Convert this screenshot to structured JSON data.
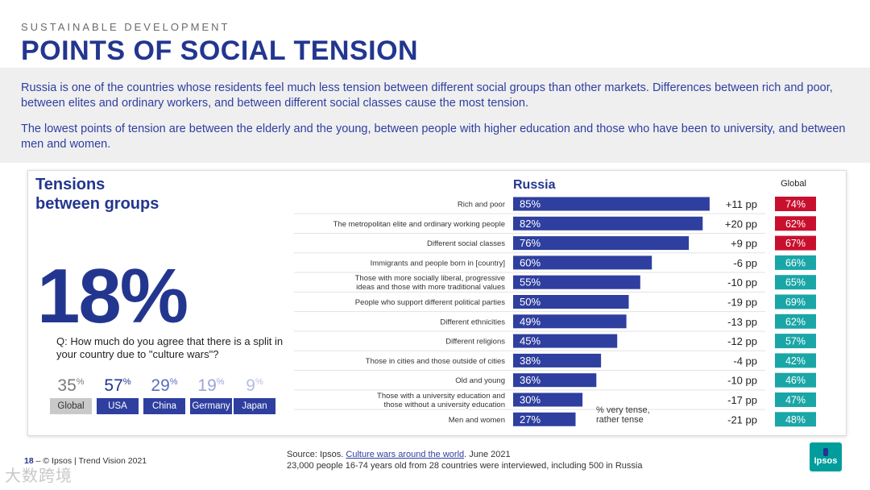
{
  "header": {
    "eyebrow": "SUSTAINABLE DEVELOPMENT",
    "title": "POINTS OF SOCIAL TENSION"
  },
  "intro": {
    "paragraph1": "Russia is one of the countries whose residents feel much less tension between different social groups than other markets. Differences between rich and poor, between elites and ordinary workers, and between different social classes cause the most tension.",
    "paragraph2": "The lowest points of tension are between the elderly and the young, between people with higher education and those who have been to university, and between men and women."
  },
  "panel": {
    "title_line1": "Tensions",
    "title_line2": "between groups",
    "big_stat": "18%",
    "question": "Q: How much do you agree that there is a split in your country due to \"culture wars\"?",
    "countries": [
      {
        "name": "Global",
        "value": "35",
        "unit": "%",
        "value_color": "#7a7a7a",
        "label_bg": "#c9c9c9",
        "label_color": "#333333"
      },
      {
        "name": "USA",
        "value": "57",
        "unit": "%",
        "value_color": "#23368f",
        "label_bg": "#2f3f9f",
        "label_color": "#ffffff"
      },
      {
        "name": "China",
        "value": "29",
        "unit": "%",
        "value_color": "#5b6cc0",
        "label_bg": "#2f3f9f",
        "label_color": "#ffffff"
      },
      {
        "name": "Germany",
        "value": "19",
        "unit": "%",
        "value_color": "#9aa4d8",
        "label_bg": "#2f3f9f",
        "label_color": "#ffffff"
      },
      {
        "name": "Japan",
        "value": "9",
        "unit": "%",
        "value_color": "#b6bde3",
        "label_bg": "#2f3f9f",
        "label_color": "#ffffff"
      }
    ]
  },
  "chart_data": {
    "type": "bar",
    "title": "Russia",
    "global_header": "Global",
    "axis_note_line1": "% very tense,",
    "axis_note_line2": "rather tense",
    "categories": [
      "Rich and poor",
      "The metropolitan elite and ordinary working people",
      "Different social classes",
      "Immigrants and people born in [country]",
      "Those with more socially liberal, progressive ideas and those with more traditional values",
      "People who support different political parties",
      "Different ethnicities",
      "Different religions",
      "Those in cities and those outside of cities",
      "Old and young",
      "Those with a university education and those without a university education",
      "Men and women"
    ],
    "label_lines": [
      [
        "Rich and poor"
      ],
      [
        "The metropolitan elite and ordinary working people"
      ],
      [
        "Different social classes"
      ],
      [
        "Immigrants and people born in [country]"
      ],
      [
        "Those with more socially liberal, progressive",
        "ideas and those with more traditional values"
      ],
      [
        "People who support different political parties"
      ],
      [
        "Different ethnicities"
      ],
      [
        "Different religions"
      ],
      [
        "Those in cities and those outside of cities"
      ],
      [
        "Old and young"
      ],
      [
        "Those with a university education and",
        "those without a university education"
      ],
      [
        "Men and women"
      ]
    ],
    "series": [
      {
        "name": "Russia",
        "values": [
          85,
          82,
          76,
          60,
          55,
          50,
          49,
          45,
          38,
          36,
          30,
          27
        ]
      }
    ],
    "value_labels": [
      "85%",
      "82%",
      "76%",
      "60%",
      "55%",
      "50%",
      "49%",
      "45%",
      "38%",
      "36%",
      "30%",
      "27%"
    ],
    "diff_labels": [
      "+11 pp",
      "+20 pp",
      "+9 pp",
      "-6 pp",
      "-10 pp",
      "-19 pp",
      "-13 pp",
      "-12 pp",
      "-4 pp",
      "-10 pp",
      "-17 pp",
      "-21 pp"
    ],
    "global_values": [
      74,
      62,
      67,
      66,
      65,
      69,
      62,
      57,
      42,
      46,
      47,
      48
    ],
    "global_labels": [
      "74%",
      "62%",
      "67%",
      "66%",
      "65%",
      "69%",
      "62%",
      "57%",
      "42%",
      "46%",
      "47%",
      "48%"
    ],
    "global_colors": [
      "#c8102e",
      "#c8102e",
      "#c8102e",
      "#1aa6a6",
      "#1aa6a6",
      "#1aa6a6",
      "#1aa6a6",
      "#1aa6a6",
      "#1aa6a6",
      "#1aa6a6",
      "#1aa6a6",
      "#1aa6a6"
    ],
    "bar_color": "#2f3f9f",
    "xlim": [
      0,
      100
    ]
  },
  "footer": {
    "page_number": "18",
    "page_text": "© Ipsos | Trend Vision 2021",
    "source_prefix": "Source: Ipsos.",
    "source_link": "Culture wars around the world",
    "source_suffix": ". June 2021",
    "source_line2": "23,000 people 16-74 years old from 28 countries were interviewed, including 500 in Russia",
    "logo_text": "Ipsos",
    "watermark": "大数跨境"
  }
}
